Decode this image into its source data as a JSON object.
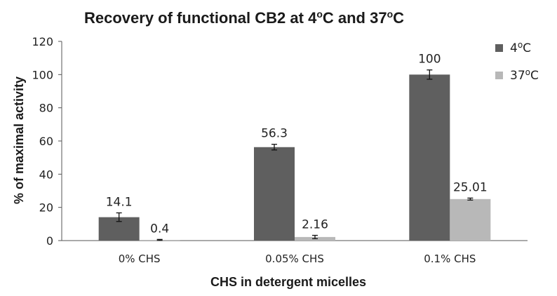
{
  "chart_data": {
    "type": "bar",
    "title_main": "Recovery of functional CB2 at 4",
    "title_sup1": "o",
    "title_mid": "C and 37",
    "title_sup2": "o",
    "title_end": "C",
    "xlabel": "CHS in detergent micelles",
    "ylabel": "% of maximal activity",
    "ylim": [
      0,
      120
    ],
    "yticks": [
      0,
      20,
      40,
      60,
      80,
      100,
      120
    ],
    "categories": [
      "0% CHS",
      "0.05% CHS",
      "0.1% CHS"
    ],
    "series": [
      {
        "name_base": "4",
        "name_sup": "o",
        "name_end": "C",
        "color": "#5f5f5f",
        "values": [
          14.1,
          56.3,
          100
        ],
        "labels": [
          "14.1",
          "56.3",
          "100"
        ],
        "errors": [
          2.6,
          1.7,
          2.8
        ]
      },
      {
        "name_base": "37",
        "name_sup": "o",
        "name_end": "C",
        "color": "#b8b8b8",
        "values": [
          0.4,
          2.16,
          25.01
        ],
        "labels": [
          "0.4",
          "2.16",
          "25.01"
        ],
        "errors": [
          0.3,
          1.0,
          0.6
        ]
      }
    ],
    "grid": false,
    "legend_position": "top-right"
  }
}
